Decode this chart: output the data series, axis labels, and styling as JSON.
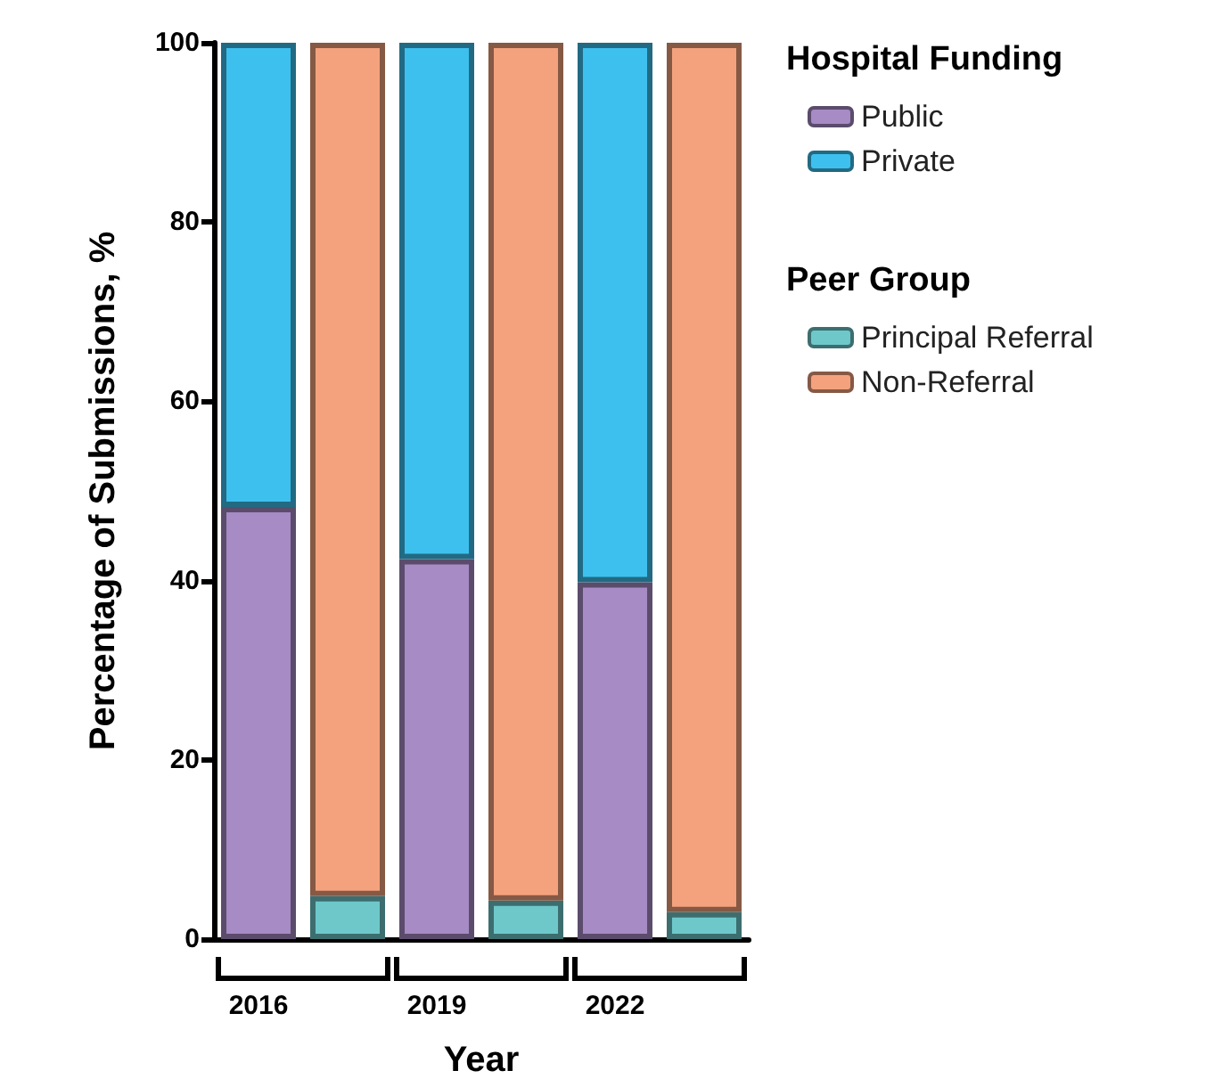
{
  "chart_data": {
    "type": "bar",
    "stacked": true,
    "categories": [
      "2016",
      null,
      "2019",
      null,
      "2022",
      null
    ],
    "series": [
      {
        "name": "Public",
        "color": "#a68bc4",
        "values": [
          48.2,
          null,
          42.4,
          null,
          39.8,
          null
        ]
      },
      {
        "name": "Private",
        "color": "#3ec0ee",
        "values": [
          51.8,
          null,
          57.6,
          null,
          60.2,
          null
        ]
      },
      {
        "name": "Principal Referral",
        "color": "#6ec8ca",
        "values": [
          null,
          4.8,
          null,
          4.3,
          null,
          3.0
        ]
      },
      {
        "name": "Non-Referral",
        "color": "#f4a27e",
        "values": [
          null,
          95.2,
          null,
          95.7,
          null,
          97.0
        ]
      }
    ],
    "xlabel": "Year",
    "ylabel": "Percentage of Submissions, %",
    "ylim": [
      0,
      100
    ],
    "yticks": [
      0,
      20,
      40,
      60,
      80,
      100
    ],
    "grid": false,
    "legend": "top right",
    "legend_title": "Hospital Funding",
    "annotations": [
      "Peer Group"
    ]
  }
}
